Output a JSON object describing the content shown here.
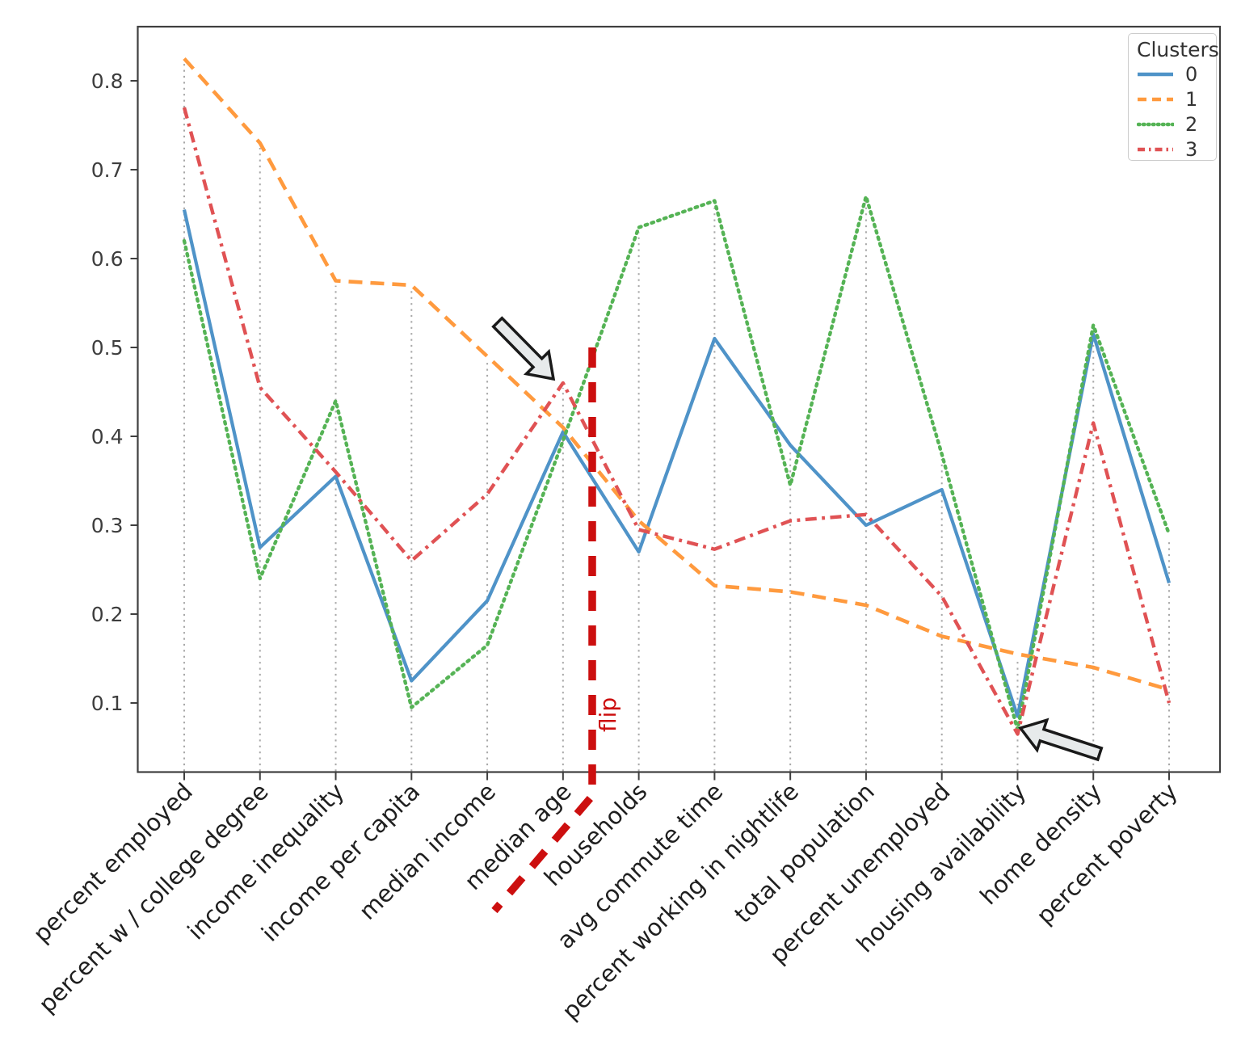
{
  "chart_data": {
    "type": "line",
    "title": "",
    "categories": [
      "percent employed",
      "percent w / college degree",
      "income inequality",
      "income per capita",
      "median income",
      "median age",
      "households",
      "avg commute time",
      "percent working in nightlife",
      "total population",
      "percent unemployed",
      "housing availability",
      "home density",
      "percent poverty"
    ],
    "series": [
      {
        "name": "0",
        "style": "solid",
        "color": "#4f93c8",
        "values": [
          0.655,
          0.275,
          0.355,
          0.125,
          0.215,
          0.405,
          0.27,
          0.51,
          0.39,
          0.3,
          0.34,
          0.085,
          0.515,
          0.235
        ]
      },
      {
        "name": "1",
        "style": "dashed",
        "color": "#ff9a3e",
        "values": [
          0.825,
          0.73,
          0.575,
          0.57,
          0.49,
          0.41,
          0.305,
          0.232,
          0.225,
          0.21,
          0.175,
          0.155,
          0.14,
          0.115
        ]
      },
      {
        "name": "2",
        "style": "dotted",
        "color": "#55b355",
        "values": [
          0.62,
          0.24,
          0.44,
          0.095,
          0.165,
          0.395,
          0.635,
          0.665,
          0.345,
          0.67,
          0.38,
          0.07,
          0.525,
          0.29
        ]
      },
      {
        "name": "3",
        "style": "dashdot",
        "color": "#e05254",
        "values": [
          0.77,
          0.455,
          0.36,
          0.26,
          0.335,
          0.46,
          0.295,
          0.273,
          0.305,
          0.312,
          0.22,
          0.065,
          0.415,
          0.1
        ]
      }
    ],
    "ylim": [
      0.023,
      0.861
    ],
    "yticks": [
      "0.1",
      "0.2",
      "0.3",
      "0.4",
      "0.5",
      "0.6",
      "0.7",
      "0.8"
    ],
    "grid": "vertical dotted stems per category",
    "legend": {
      "title": "Clusters",
      "position": "upper right"
    }
  },
  "annotations": {
    "flip": {
      "label": "flip",
      "color": "#cc0f0f",
      "between_categories": [
        "median age",
        "households"
      ],
      "line_top_value": 0.5
    },
    "arrows": [
      {
        "points_at": "cluster 3 peak at median age",
        "direction": "down-right"
      },
      {
        "points_at": "minimum of clusters 2 and 3 at housing availability",
        "direction": "left"
      }
    ]
  },
  "colors": {
    "background": "#ffffff",
    "frame": "#3f3f3f",
    "grid": "#a8a8a8",
    "x_tick_label": "#1f1f1f",
    "y_tick_label": "#3d3d3d",
    "arrow_fill": "#e7eaeb",
    "arrow_stroke": "#1a1a1a"
  }
}
